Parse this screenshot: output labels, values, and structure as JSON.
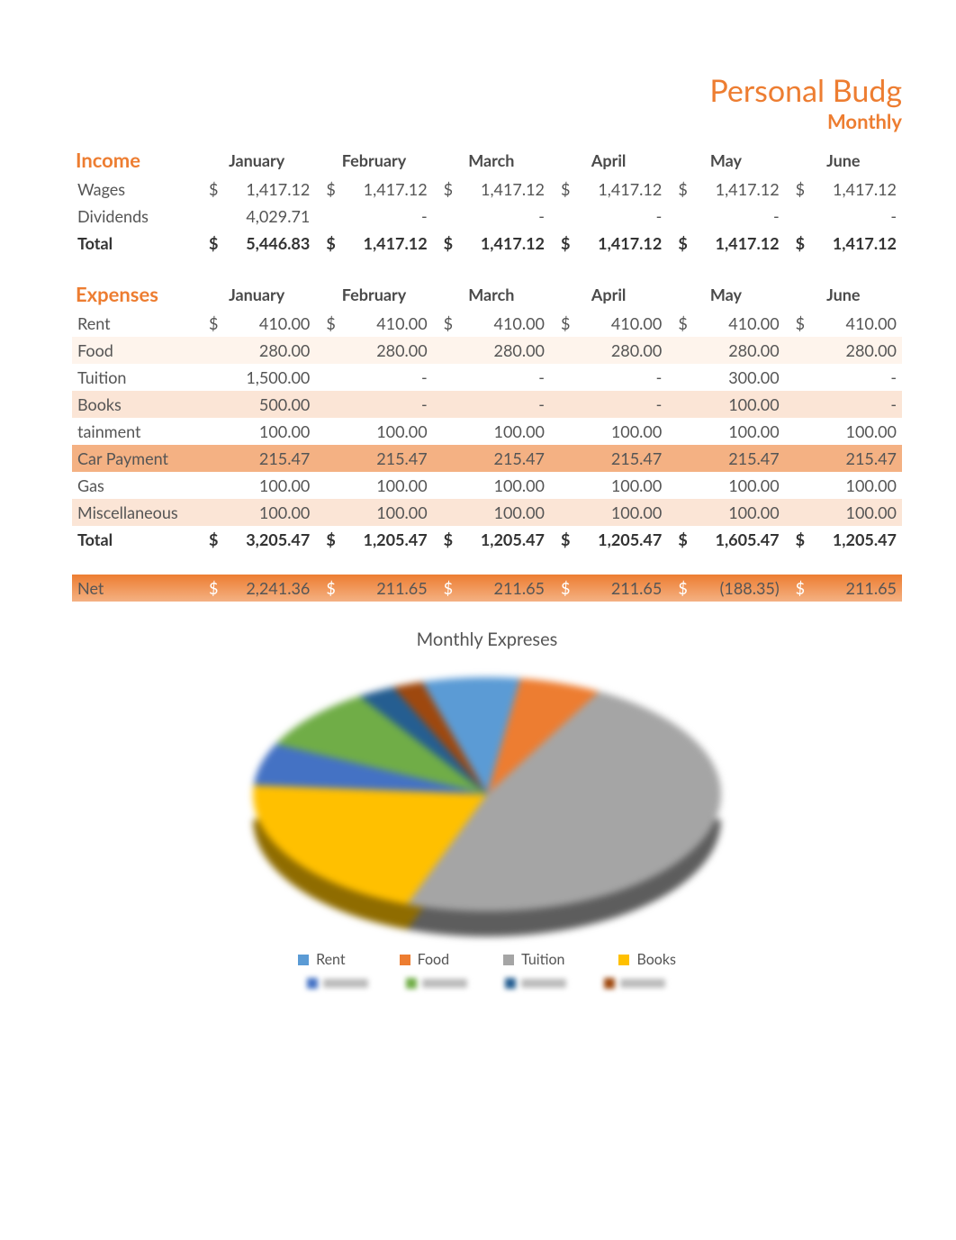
{
  "title": {
    "main": "Personal Budg",
    "sub": "Monthly"
  },
  "months": [
    "January",
    "February",
    "March",
    "April",
    "May",
    "June"
  ],
  "income": {
    "heading": "Income",
    "rows": [
      {
        "label": "Wages",
        "vals": [
          "1,417.12",
          "1,417.12",
          "1,417.12",
          "1,417.12",
          "1,417.12",
          "1,417.12"
        ],
        "dollars": [
          true,
          true,
          true,
          true,
          true,
          true
        ]
      },
      {
        "label": "Dividends",
        "vals": [
          "4,029.71",
          "-",
          "-",
          "-",
          "-",
          "-"
        ],
        "dollars": [
          false,
          false,
          false,
          false,
          false,
          false
        ]
      }
    ],
    "total": {
      "label": "Total",
      "vals": [
        "5,446.83",
        "1,417.12",
        "1,417.12",
        "1,417.12",
        "1,417.12",
        "1,417.12"
      ],
      "dollars": [
        true,
        true,
        true,
        true,
        true,
        true
      ]
    }
  },
  "expenses": {
    "heading": "Expenses",
    "rows": [
      {
        "label": "Rent",
        "vals": [
          "410.00",
          "410.00",
          "410.00",
          "410.00",
          "410.00",
          "410.00"
        ],
        "dollars": [
          true,
          true,
          true,
          true,
          true,
          true
        ],
        "band": ""
      },
      {
        "label": "Food",
        "vals": [
          "280.00",
          "280.00",
          "280.00",
          "280.00",
          "280.00",
          "280.00"
        ],
        "dollars": [
          false,
          false,
          false,
          false,
          false,
          false
        ],
        "band": "band-light"
      },
      {
        "label": "Tuition",
        "vals": [
          "1,500.00",
          "-",
          "-",
          "-",
          "300.00",
          "-"
        ],
        "dollars": [
          false,
          false,
          false,
          false,
          false,
          false
        ],
        "band": ""
      },
      {
        "label": "Books",
        "vals": [
          "500.00",
          "-",
          "-",
          "-",
          "100.00",
          "-"
        ],
        "dollars": [
          false,
          false,
          false,
          false,
          false,
          false
        ],
        "band": "band-med"
      },
      {
        "label": "tainment",
        "vals": [
          "100.00",
          "100.00",
          "100.00",
          "100.00",
          "100.00",
          "100.00"
        ],
        "dollars": [
          false,
          false,
          false,
          false,
          false,
          false
        ],
        "band": ""
      },
      {
        "label": "Car Payment",
        "vals": [
          "215.47",
          "215.47",
          "215.47",
          "215.47",
          "215.47",
          "215.47"
        ],
        "dollars": [
          false,
          false,
          false,
          false,
          false,
          false
        ],
        "band": "band-full"
      },
      {
        "label": "Gas",
        "vals": [
          "100.00",
          "100.00",
          "100.00",
          "100.00",
          "100.00",
          "100.00"
        ],
        "dollars": [
          false,
          false,
          false,
          false,
          false,
          false
        ],
        "band": ""
      },
      {
        "label": "Miscellaneous",
        "vals": [
          "100.00",
          "100.00",
          "100.00",
          "100.00",
          "100.00",
          "100.00"
        ],
        "dollars": [
          false,
          false,
          false,
          false,
          false,
          false
        ],
        "band": "band-med"
      }
    ],
    "total": {
      "label": "Total",
      "vals": [
        "3,205.47",
        "1,205.47",
        "1,205.47",
        "1,205.47",
        "1,605.47",
        "1,205.47"
      ],
      "dollars": [
        true,
        true,
        true,
        true,
        true,
        true
      ]
    }
  },
  "net": {
    "label": "Net",
    "vals": [
      "2,241.36",
      "211.65",
      "211.65",
      "211.65",
      "(188.35)",
      "211.65"
    ],
    "dollars": [
      true,
      true,
      true,
      true,
      true,
      true
    ]
  },
  "chart": {
    "title": "Monthly Expreses",
    "type": "pie-3d",
    "slices": [
      {
        "label": "Rent",
        "value": 410,
        "color": "#5b9bd5"
      },
      {
        "label": "Food",
        "value": 280,
        "color": "#ed7d31"
      },
      {
        "label": "Tuition",
        "value": 1500,
        "color": "#a5a5a5"
      },
      {
        "label": "Books",
        "value": 500,
        "color": "#ffc000"
      },
      {
        "label": "tainment",
        "value": 100,
        "color": "#4472c4"
      },
      {
        "label": "Car Payment",
        "value": 215,
        "color": "#70ad47"
      },
      {
        "label": "Gas",
        "value": 100,
        "color": "#255e91"
      },
      {
        "label": "Miscellaneous",
        "value": 100,
        "color": "#9e480e"
      }
    ],
    "legend_row1": [
      {
        "label": "Rent",
        "color": "#5b9bd5"
      },
      {
        "label": "Food",
        "color": "#ed7d31"
      },
      {
        "label": "Tuition",
        "color": "#a5a5a5"
      },
      {
        "label": "Books",
        "color": "#ffc000"
      }
    ],
    "legend_row2_colors": [
      "#4472c4",
      "#70ad47",
      "#255e91",
      "#9e480e"
    ],
    "background_color": "#ffffff"
  },
  "styling": {
    "accent_color": "#ed7d31",
    "band_light": "#fef4ec",
    "band_med": "#fbe5d6",
    "band_full": "#f4b183",
    "text_color": "#4a4a4a",
    "header_fontsize": 22,
    "cell_fontsize": 18,
    "title_fontsize": 34
  }
}
